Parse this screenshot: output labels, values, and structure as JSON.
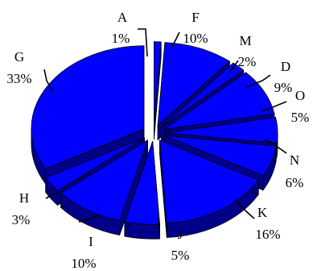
{
  "chart_data": {
    "type": "pie",
    "style": "3d-exploded",
    "slices": [
      {
        "label": "A",
        "value": 1,
        "percent_label": "1%"
      },
      {
        "label": "F",
        "value": 10,
        "percent_label": "10%"
      },
      {
        "label": "M",
        "value": 2,
        "percent_label": "2%"
      },
      {
        "label": "D",
        "value": 9,
        "percent_label": "9%"
      },
      {
        "label": "O",
        "value": 5,
        "percent_label": "5%"
      },
      {
        "label": "N",
        "value": 6,
        "percent_label": "6%"
      },
      {
        "label": "K",
        "value": 16,
        "percent_label": "16%"
      },
      {
        "label": "J",
        "value": 5,
        "percent_label": "5%"
      },
      {
        "label": "I",
        "value": 10,
        "percent_label": "10%"
      },
      {
        "label": "H",
        "value": 3,
        "percent_label": "3%"
      },
      {
        "label": "G",
        "value": 33,
        "percent_label": "33%"
      }
    ],
    "colors": {
      "top": "#0000ff",
      "side": "#00008b",
      "outline": "#000000",
      "background": "#ffffff"
    },
    "legend": "none"
  }
}
